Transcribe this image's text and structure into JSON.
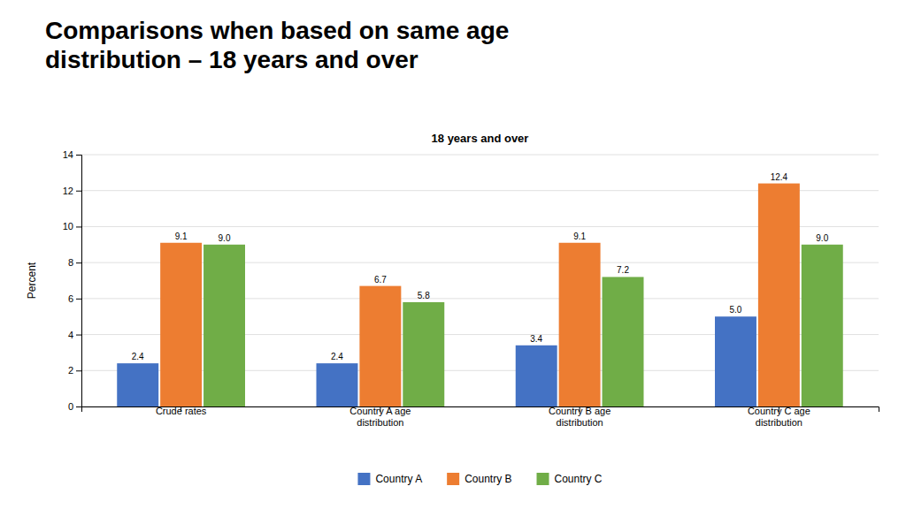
{
  "chart_data": {
    "type": "bar",
    "title": "Comparisons when based on same age\ndistribution – 18 years and over",
    "subtitle": "18 years and over",
    "y_label": "Percent",
    "categories": [
      "Crude rates",
      "Country A age\ndistribution",
      "Country B age\ndistribution",
      "Country C age\ndistribution"
    ],
    "series": [
      {
        "name": "Country A",
        "color": "#4472C4",
        "values": [
          2.4,
          2.4,
          3.4,
          5.0
        ],
        "value_labels": [
          "2.4",
          "2.4",
          "3.4",
          "5.0"
        ]
      },
      {
        "name": "Country B",
        "color": "#ED7D31",
        "values": [
          9.1,
          6.7,
          9.1,
          12.4
        ],
        "value_labels": [
          "9.1",
          "6.7",
          "9.1",
          "12.4"
        ]
      },
      {
        "name": "Country C",
        "color": "#70AD47",
        "values": [
          9.0,
          5.8,
          7.2,
          9.0
        ],
        "value_labels": [
          "9.0",
          "5.8",
          "7.2",
          "9.0"
        ]
      }
    ],
    "ylim": [
      0,
      14
    ],
    "yticks": [
      0,
      2,
      4,
      6,
      8,
      10,
      12,
      14
    ],
    "grid": true,
    "legend": "bottom",
    "data_labels": true
  }
}
